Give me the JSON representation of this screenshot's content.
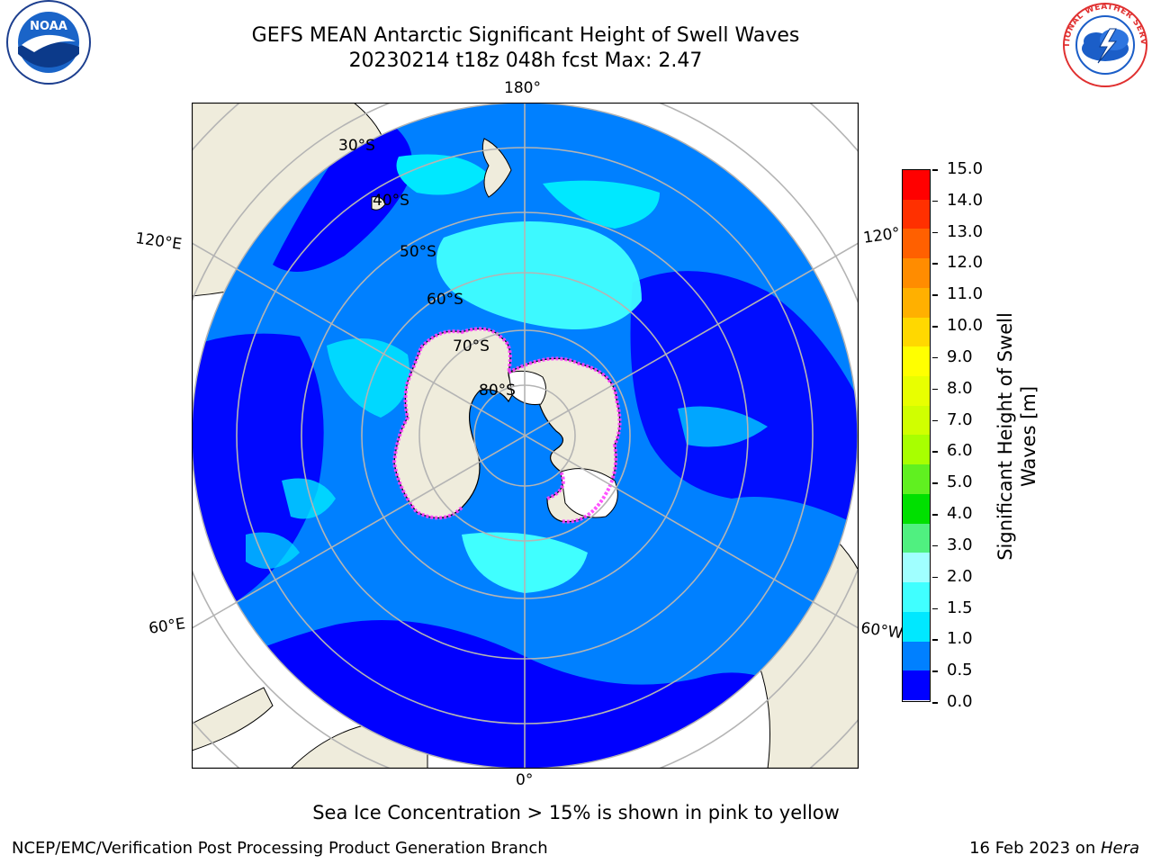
{
  "header": {
    "title_line1": "GEFS MEAN Antarctic Significant Height of Swell Waves",
    "title_line2": "20230214 t18z 048h fcst   Max: 2.47"
  },
  "logos": {
    "noaa_text": "NOAA",
    "nws_text": "NATIONAL WEATHER SERVICE"
  },
  "map": {
    "longitude_labels": [
      "180°",
      "120°E",
      "120°",
      "60°E",
      "60°W",
      "0°"
    ],
    "latitude_labels": [
      "30°S",
      "40°S",
      "50°S",
      "60°S",
      "70°S",
      "80°S"
    ],
    "colors": {
      "ocean_deep": "#0000ff",
      "ocean_mid": "#0080ff",
      "ocean_light": "#00e8ff",
      "ocean_lighter": "#40ffff",
      "land": "#efecdc",
      "grid": "#b4b4b4",
      "ice_edge": "#ff40ff"
    }
  },
  "colorbar": {
    "title_line1": "Significant Height of Swell",
    "title_line2": "Waves [m]",
    "ticks": [
      "15.0",
      "14.0",
      "13.0",
      "12.0",
      "11.0",
      "10.0",
      "9.0",
      "8.0",
      "7.0",
      "6.0",
      "5.0",
      "4.0",
      "3.0",
      "2.0",
      "1.5",
      "1.0",
      "0.5",
      "0.0"
    ],
    "colors_top_to_bottom": [
      "#ff0000",
      "#ff3000",
      "#ff6000",
      "#ff8c00",
      "#ffb000",
      "#ffd800",
      "#ffff00",
      "#e8ff00",
      "#d0ff00",
      "#a8ff00",
      "#60f020",
      "#00e000",
      "#50f080",
      "#a0ffff",
      "#40ffff",
      "#00e8ff",
      "#0080ff",
      "#0000ff"
    ]
  },
  "footer": {
    "note": "Sea Ice Concentration > 15% is shown in pink to yellow",
    "credit": "NCEP/EMC/Verification Post Processing Product Generation Branch",
    "date_prefix": "16 Feb 2023 on ",
    "machine": "Hera"
  }
}
